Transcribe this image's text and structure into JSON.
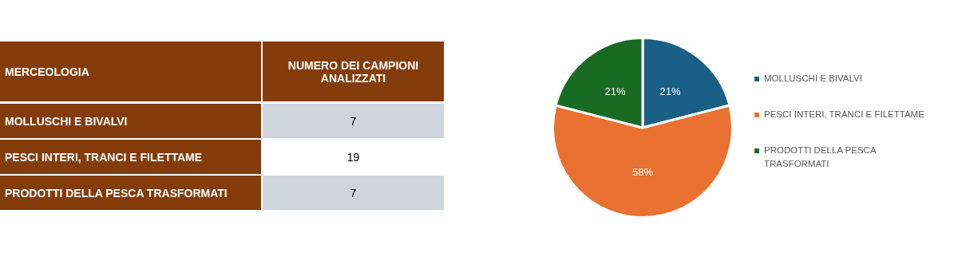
{
  "chart_data": [
    {
      "type": "other",
      "xlabel": "MERCEOLOGIA",
      "ylabel": "NUMERO DEI CAMPIONI ANALIZZATI",
      "categories": [
        "MOLLUSCHI E BIVALVI",
        "PESCI INTERI, TRANCI E FILETTAME",
        "PRODOTTI DELLA PESCA TRASFORMATI"
      ],
      "values": [
        7,
        19,
        7
      ],
      "data_labels": true
    },
    {
      "type": "pie",
      "categories": [
        "MOLLUSCHI E BIVALVI",
        "PESCI INTERI, TRANCI E FILETTAME",
        "PRODOTTI DELLA PESCA TRASFORMATI"
      ],
      "values": [
        21,
        58,
        21
      ],
      "value_labels": [
        "21%",
        "58%",
        "21%"
      ],
      "colors": [
        "#1a6086",
        "#e97132",
        "#196b24"
      ],
      "legend": "right"
    }
  ]
}
